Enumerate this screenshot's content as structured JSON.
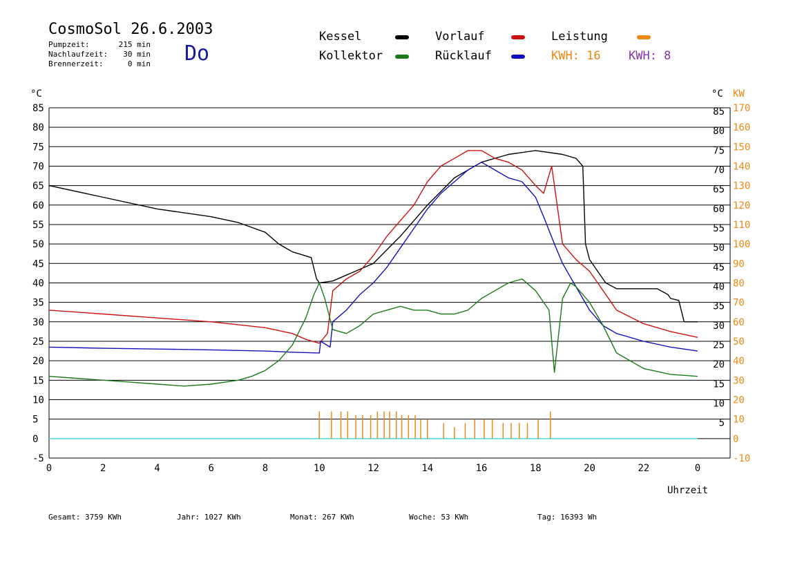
{
  "header": {
    "title": "CosmoSol 26.6.2003",
    "day": "Do",
    "info": [
      {
        "label": "Pumpzeit:",
        "value": "215 min"
      },
      {
        "label": "Nachlaufzeit:",
        "value": "30 min"
      },
      {
        "label": "Brennerzeit:",
        "value": "0 min"
      }
    ]
  },
  "legend": {
    "kessel": "Kessel",
    "kollektor": "Kollektor",
    "vorlauf": "Vorlauf",
    "ruecklauf": "Rücklauf",
    "leistung": "Leistung",
    "kwh1": "KWH: 16",
    "kwh2": "KWH: 8"
  },
  "colors": {
    "kessel": "#000000",
    "kollektor": "#1a7a1a",
    "vorlauf": "#cc1111",
    "ruecklauf": "#1111bb",
    "leistung": "#ee8811",
    "kwh2": "#8833aa",
    "baseline": "#55dddd"
  },
  "footer": {
    "gesamt": "Gesamt:   3759 KWh",
    "jahr": "Jahr:  1027 KWh",
    "monat": "Monat:   267 KWh",
    "woche": "Woche:     53 KWh",
    "tag": "Tag:  16393 Wh"
  },
  "chart_data": {
    "type": "line",
    "xlabel": "Uhrzeit",
    "ylabel_left": "°C",
    "ylabel_right_temp": "°C",
    "ylabel_right_power": "KW",
    "xlim": [
      0,
      24
    ],
    "ylim": [
      -5,
      85
    ],
    "x_tick_labels": [
      "0",
      "2",
      "4",
      "6",
      "8",
      "10",
      "12",
      "14",
      "16",
      "18",
      "20",
      "22",
      "0"
    ],
    "y_tick_labels_left": [
      "-5",
      "0",
      "5",
      "10",
      "15",
      "20",
      "25",
      "30",
      "35",
      "40",
      "45",
      "50",
      "55",
      "60",
      "65",
      "70",
      "75",
      "80",
      "85"
    ],
    "y_tick_labels_right_temp": [
      "5",
      "10",
      "15",
      "20",
      "25",
      "30",
      "35",
      "40",
      "45",
      "50",
      "55",
      "60",
      "65",
      "70",
      "75",
      "80",
      "85"
    ],
    "y_tick_labels_right_power": [
      "-10",
      "0",
      "10",
      "20",
      "30",
      "40",
      "50",
      "60",
      "70",
      "80",
      "90",
      "100",
      "110",
      "120",
      "130",
      "140",
      "150",
      "160",
      "170"
    ],
    "series": [
      {
        "name": "Kessel",
        "color_key": "kessel",
        "x": [
          0,
          2,
          4,
          6,
          7,
          8,
          8.5,
          9,
          9.7,
          9.9,
          10,
          10.5,
          11,
          12,
          13,
          14,
          15,
          16,
          17,
          18,
          19,
          19.5,
          19.75,
          19.85,
          20,
          20.3,
          20.6,
          21,
          22,
          22.5,
          22.9,
          23,
          23.3,
          23.5,
          24
        ],
        "y": [
          65,
          62,
          59,
          57,
          55.5,
          53,
          50,
          48,
          46.5,
          41,
          40,
          40.5,
          42,
          45,
          52,
          60,
          67,
          71,
          73,
          74,
          73,
          72,
          70,
          50,
          46,
          43,
          40,
          38.5,
          38.5,
          38.5,
          37,
          36,
          35.5,
          30,
          30
        ]
      },
      {
        "name": "Vorlauf",
        "color_key": "vorlauf",
        "x": [
          0,
          2,
          4,
          6,
          8,
          9,
          9.5,
          10,
          10.3,
          10.5,
          11,
          11.5,
          12,
          12.5,
          13,
          13.5,
          14,
          14.5,
          15,
          15.5,
          16,
          16.5,
          17,
          17.5,
          18,
          18.3,
          18.6,
          19,
          19.5,
          20,
          20.5,
          21,
          22,
          23,
          24
        ],
        "y": [
          33,
          32,
          31,
          30,
          28.5,
          27,
          25.5,
          24.5,
          27,
          38,
          41,
          43,
          47,
          52,
          56,
          60,
          66,
          70,
          72,
          74,
          74,
          72,
          71,
          69,
          65,
          63,
          70,
          50,
          46,
          43,
          38,
          33,
          29.5,
          27.5,
          26
        ]
      },
      {
        "name": "Rücklauf",
        "color_key": "ruecklauf",
        "x": [
          0,
          2,
          4,
          6,
          8,
          9,
          10,
          10.05,
          10.4,
          10.5,
          11,
          11.5,
          12,
          12.5,
          13,
          13.5,
          14,
          14.5,
          15,
          15.5,
          16,
          16.5,
          17,
          17.5,
          18,
          18.3,
          18.7,
          19,
          19.5,
          20,
          20.5,
          21,
          22,
          23,
          24
        ],
        "y": [
          23.5,
          23.2,
          23,
          22.8,
          22.5,
          22.2,
          22,
          25,
          23.5,
          30,
          33,
          37,
          40,
          44,
          49,
          54,
          59,
          63,
          66,
          69,
          71,
          69,
          67,
          66,
          62,
          57,
          50,
          45,
          39,
          33,
          29,
          27,
          25,
          23.5,
          22.5
        ]
      },
      {
        "name": "Kollektor",
        "color_key": "kollektor",
        "x": [
          0,
          1,
          2,
          3,
          4,
          5,
          6,
          7,
          7.5,
          8,
          8.5,
          9,
          9.5,
          9.8,
          10,
          10.2,
          10.5,
          11,
          11.5,
          12,
          12.5,
          13,
          13.5,
          14,
          14.5,
          15,
          15.5,
          16,
          16.5,
          17,
          17.5,
          18,
          18.5,
          18.7,
          19,
          19.3,
          19.5,
          20,
          20.5,
          21,
          22,
          23,
          24
        ],
        "y": [
          16,
          15.5,
          15,
          14.5,
          14,
          13.5,
          14,
          15,
          16,
          17.5,
          20,
          24,
          31,
          37,
          40,
          36,
          28,
          27,
          29,
          32,
          33,
          34,
          33,
          33,
          32,
          32,
          33,
          36,
          38,
          40,
          41,
          38,
          33,
          17,
          36,
          40,
          39,
          35,
          29,
          22,
          18,
          16.5,
          16
        ]
      }
    ],
    "leistung_spike_hours": [
      10.0,
      10.45,
      10.8,
      11.05,
      11.35,
      11.6,
      11.9,
      12.15,
      12.4,
      12.6,
      12.85,
      13.05,
      13.3,
      13.55,
      13.75,
      14.0,
      14.6,
      15.0,
      15.4,
      15.75,
      16.1,
      16.4,
      16.8,
      17.1,
      17.4,
      17.7,
      18.1,
      18.55
    ],
    "leistung_spike_kw": [
      7,
      7,
      7,
      7,
      6,
      6,
      6,
      7,
      7,
      7,
      7,
      6,
      6,
      6,
      5,
      5,
      4,
      3,
      4,
      5,
      5,
      5,
      4,
      4,
      4,
      4,
      5,
      7
    ]
  }
}
